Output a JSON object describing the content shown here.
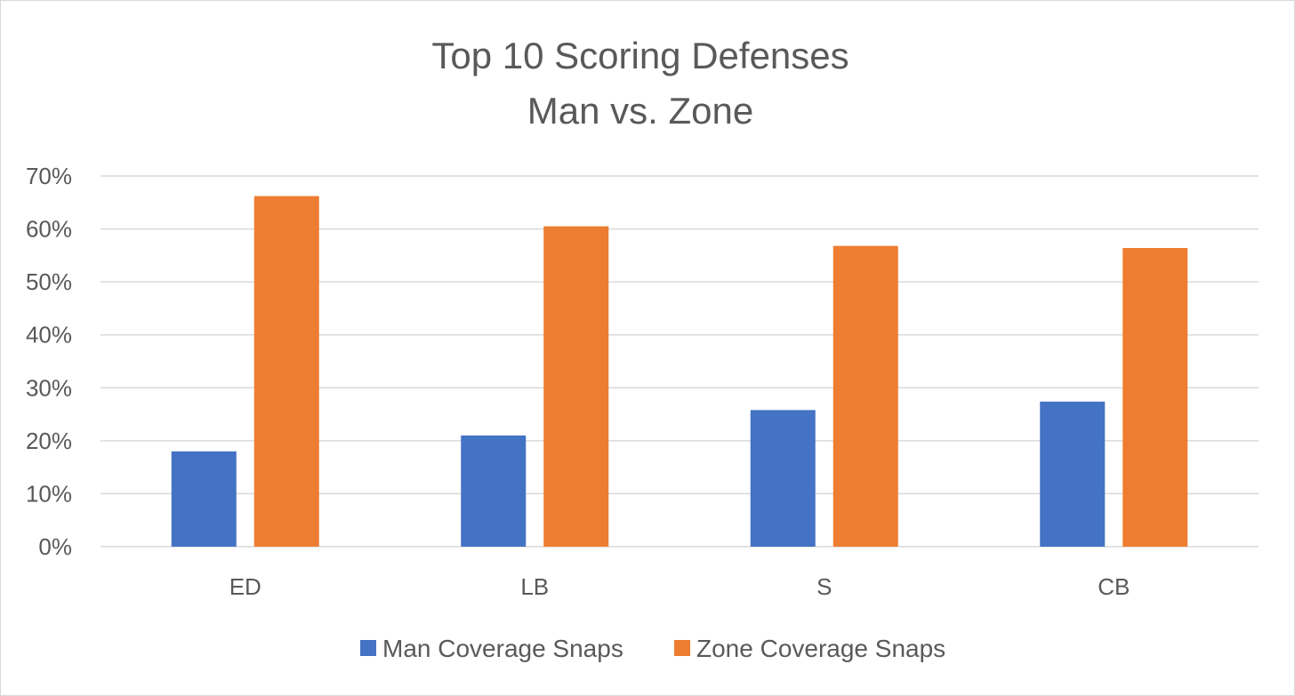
{
  "chart_data": {
    "type": "bar",
    "title": [
      "Top 10 Scoring Defenses",
      "Man vs. Zone"
    ],
    "categories": [
      "ED",
      "LB",
      "S",
      "CB"
    ],
    "series": [
      {
        "name": "Man Coverage Snaps",
        "color": "#4472c4",
        "values": [
          0.18,
          0.21,
          0.258,
          0.274
        ]
      },
      {
        "name": "Zone Coverage Snaps",
        "color": "#ed7d31",
        "values": [
          0.662,
          0.605,
          0.568,
          0.564
        ]
      }
    ],
    "ylim": [
      0,
      0.7
    ],
    "yticks": [
      0,
      0.1,
      0.2,
      0.3,
      0.4,
      0.5,
      0.6,
      0.7
    ],
    "ytick_labels": [
      "0%",
      "10%",
      "20%",
      "30%",
      "40%",
      "50%",
      "60%",
      "70%"
    ],
    "xlabel": "",
    "ylabel": "",
    "grid": true,
    "legend_position": "bottom"
  }
}
